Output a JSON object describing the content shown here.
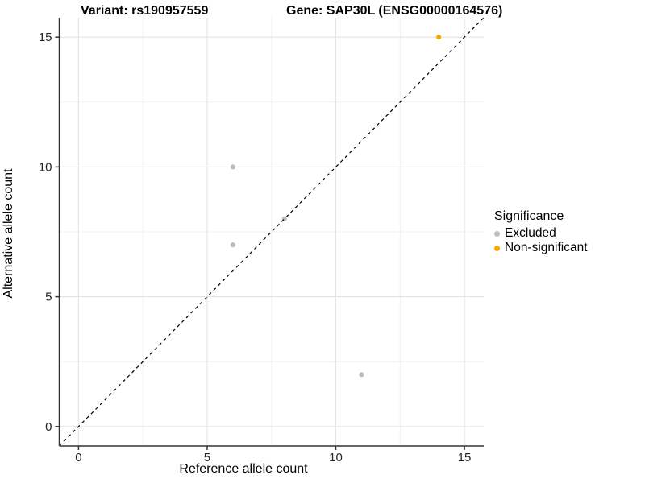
{
  "chart_data": {
    "type": "scatter",
    "title_variant": "Variant: rs190957559",
    "title_gene": "Gene: SAP30L (ENSG00000164576)",
    "xlabel": "Reference allele count",
    "ylabel": "Alternative allele count",
    "xlim": [
      -0.75,
      15.75
    ],
    "ylim": [
      -0.75,
      15.75
    ],
    "x_ticks": [
      0,
      5,
      10,
      15
    ],
    "y_ticks": [
      0,
      5,
      10,
      15
    ],
    "minor_gridlines": [
      2.5,
      7.5,
      12.5
    ],
    "grid": true,
    "identity_line": {
      "type": "dashed",
      "slope": 1,
      "intercept": 0,
      "color": "#000000"
    },
    "series": [
      {
        "name": "Excluded",
        "color": "#BEBEBE",
        "points": [
          [
            6,
            10
          ],
          [
            6,
            7
          ],
          [
            8,
            8
          ],
          [
            11,
            2
          ]
        ]
      },
      {
        "name": "Non-significant",
        "color": "#FFA500",
        "points": [
          [
            14,
            15
          ]
        ]
      }
    ],
    "legend": {
      "title": "Significance",
      "position": "right",
      "items": [
        {
          "label": "Excluded",
          "color": "#BEBEBE"
        },
        {
          "label": "Non-significant",
          "color": "#FFA500"
        }
      ]
    },
    "colors": {
      "background": "#FFFFFF",
      "grid_major": "#E4E4E4",
      "grid_minor": "#F2F2F2",
      "axis": "#333333",
      "tick_text": "#262626"
    }
  }
}
